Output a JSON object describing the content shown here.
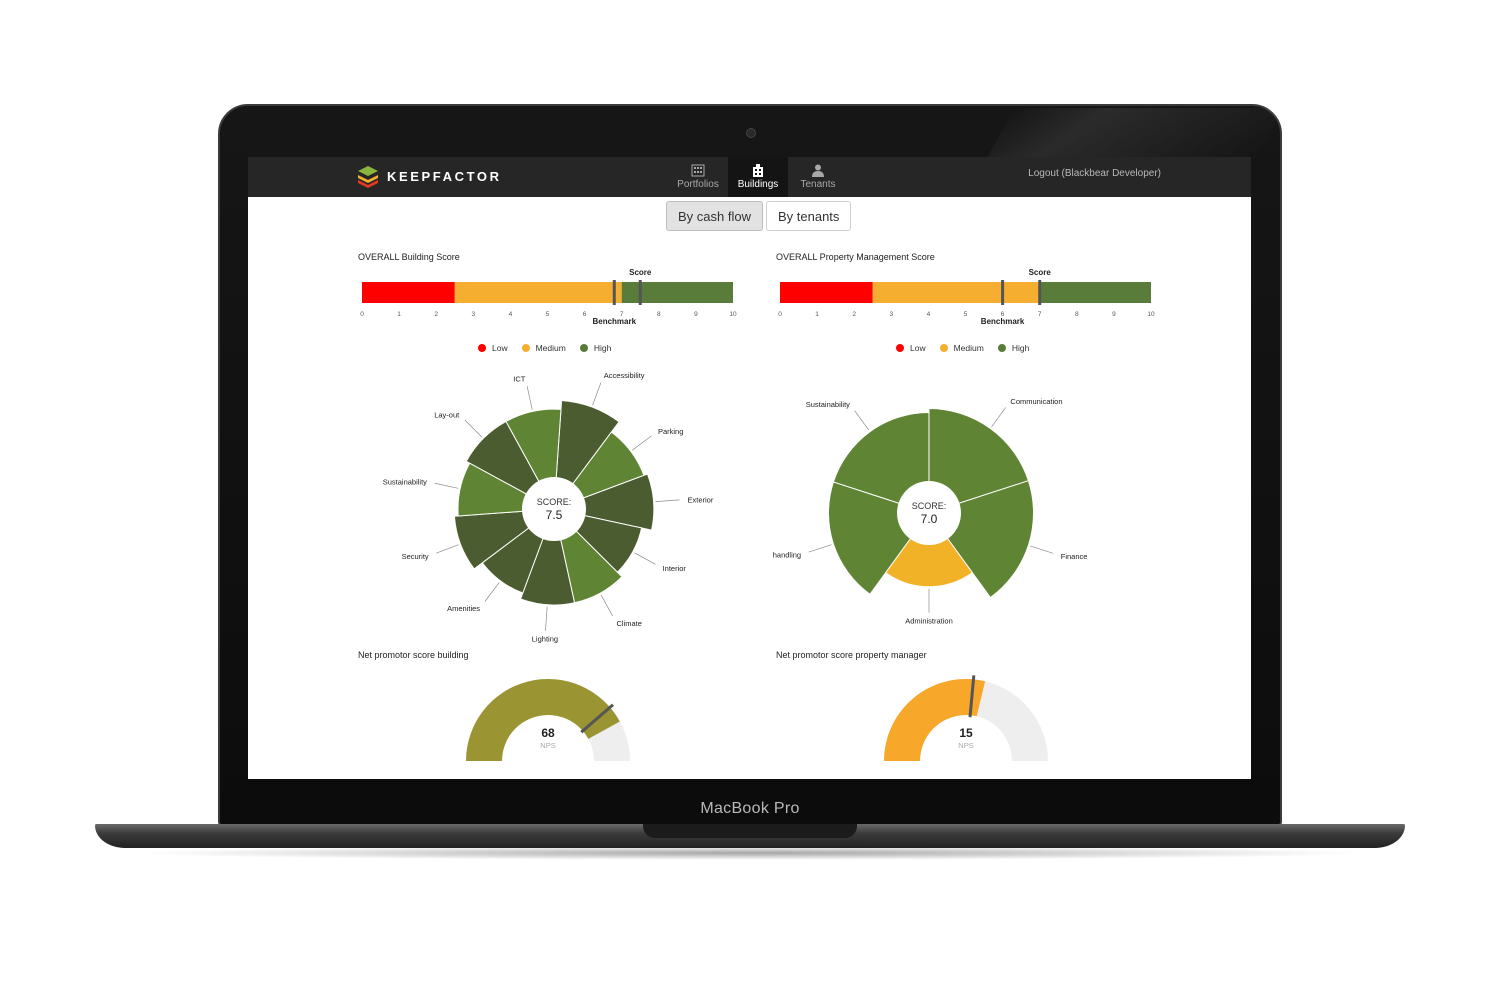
{
  "device": {
    "label": "MacBook Pro"
  },
  "header": {
    "brand": "KEEPFACTOR",
    "nav": [
      {
        "label": "Portfolios",
        "icon": "building-icon",
        "active": false
      },
      {
        "label": "Buildings",
        "icon": "buildings-icon",
        "active": true
      },
      {
        "label": "Tenants",
        "icon": "person-icon",
        "active": false
      }
    ],
    "logout": "Logout (Blackbear Developer)"
  },
  "toggle": {
    "cash_flow": "By cash flow",
    "tenants": "By tenants",
    "active": "cash_flow"
  },
  "legend": {
    "low": "Low",
    "medium": "Medium",
    "high": "High"
  },
  "colors": {
    "low": "#ff0000",
    "medium": "#f5ae2f",
    "high": "#5a7c3a"
  },
  "building": {
    "title": "OVERALL Building Score",
    "nps_title": "Net promotor score building",
    "nps_value": "68",
    "nps_label": "NPS"
  },
  "property": {
    "title": "OVERALL Property Management Score",
    "nps_title": "Net promotor score property manager",
    "nps_value": "15",
    "nps_label": "NPS"
  },
  "chart_data": [
    {
      "type": "bar",
      "title": "OVERALL Building Score",
      "xlim": [
        0,
        10
      ],
      "ticks": [
        0,
        1,
        2,
        3,
        4,
        5,
        6,
        7,
        8,
        9,
        10
      ],
      "bands": [
        {
          "name": "Low",
          "from": 0,
          "to": 2.5
        },
        {
          "name": "Medium",
          "from": 2.5,
          "to": 7
        },
        {
          "name": "High",
          "from": 7,
          "to": 10
        }
      ],
      "markers": {
        "score": 7.5,
        "benchmark": 6.8
      },
      "marker_labels": {
        "score": "Score",
        "benchmark": "Benchmark"
      }
    },
    {
      "type": "bar",
      "title": "OVERALL Property Management Score",
      "xlim": [
        0,
        10
      ],
      "ticks": [
        0,
        1,
        2,
        3,
        4,
        5,
        6,
        7,
        8,
        9,
        10
      ],
      "bands": [
        {
          "name": "Low",
          "from": 0,
          "to": 2.5
        },
        {
          "name": "Medium",
          "from": 2.5,
          "to": 7
        },
        {
          "name": "High",
          "from": 7,
          "to": 10
        }
      ],
      "markers": {
        "score": 7.0,
        "benchmark": 6.0
      },
      "marker_labels": {
        "score": "Score",
        "benchmark": "Benchmark"
      }
    },
    {
      "type": "pie",
      "subtype": "polar-area",
      "center_label": "SCORE:",
      "center_value": "7.5",
      "rmax": 10,
      "slices": [
        {
          "label": "Accessibility",
          "value": 8.5,
          "color": "#4c5c31"
        },
        {
          "label": "Parking",
          "value": 7.5,
          "color": "#5f8534"
        },
        {
          "label": "Exterior",
          "value": 7.8,
          "color": "#4c5c31"
        },
        {
          "label": "Interior",
          "value": 7.0,
          "color": "#4c5c31"
        },
        {
          "label": "Climate",
          "value": 7.5,
          "color": "#5f8534"
        },
        {
          "label": "Lighting",
          "value": 7.5,
          "color": "#4c5c31"
        },
        {
          "label": "Amenities",
          "value": 7.0,
          "color": "#4c5c31"
        },
        {
          "label": "Security",
          "value": 7.8,
          "color": "#4c5c31"
        },
        {
          "label": "Sustainability",
          "value": 7.5,
          "color": "#5f8534"
        },
        {
          "label": "Lay-out",
          "value": 7.8,
          "color": "#4c5c31"
        },
        {
          "label": "ICT",
          "value": 7.8,
          "color": "#5f8534"
        }
      ]
    },
    {
      "type": "pie",
      "subtype": "polar-area",
      "center_label": "SCORE:",
      "center_value": "7.0",
      "rmax": 10,
      "slices": [
        {
          "label": "Communication",
          "value": 7.8,
          "color": "#5f8534"
        },
        {
          "label": "Finance",
          "value": 7.8,
          "color": "#5f8534"
        },
        {
          "label": "Administration",
          "value": 5.5,
          "color": "#f2b228"
        },
        {
          "label": "Complaint handling",
          "value": 7.5,
          "color": "#5f8534"
        },
        {
          "label": "Sustainability",
          "value": 7.5,
          "color": "#5f8534"
        }
      ]
    },
    {
      "type": "gauge",
      "title": "Net promotor score building",
      "value": 68,
      "range": [
        -100,
        100
      ],
      "label": "NPS",
      "fill": "#9a9432",
      "track": "#eeeeee"
    },
    {
      "type": "gauge",
      "title": "Net promotor score property manager",
      "value": 15,
      "range": [
        -100,
        100
      ],
      "label": "NPS",
      "fill": "#f7a72a",
      "track": "#eeeeee"
    }
  ]
}
